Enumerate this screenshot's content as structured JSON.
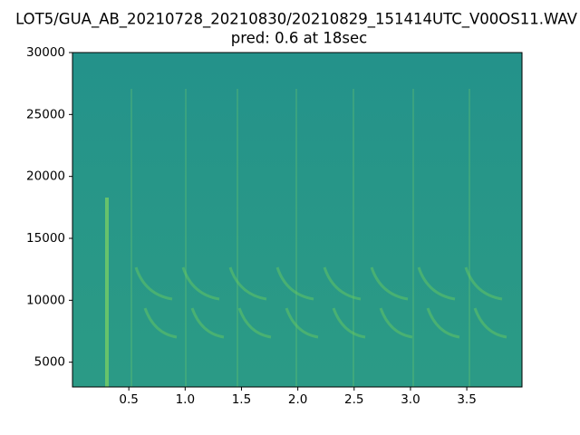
{
  "chart_data": {
    "type": "spectrogram",
    "title": "LOT5/GUA_AB_20210728_20210830/20210829_151414UTC_V00OS11.WAV",
    "subtitle": "pred: 0.6 at 18sec",
    "color": "#26968a",
    "xlim": [
      0,
      3.99
    ],
    "xticks": [
      0.5,
      {
        "value": 1,
        "label": "1.0"
      },
      1.5,
      {
        "value": 2,
        "label": "2.0"
      },
      2.5,
      {
        "value": 3,
        "label": "3.0"
      },
      3.5
    ],
    "ylim": [
      3000,
      30000
    ],
    "yticks": [
      5000,
      10000,
      15000,
      20000,
      25000,
      30000
    ]
  }
}
